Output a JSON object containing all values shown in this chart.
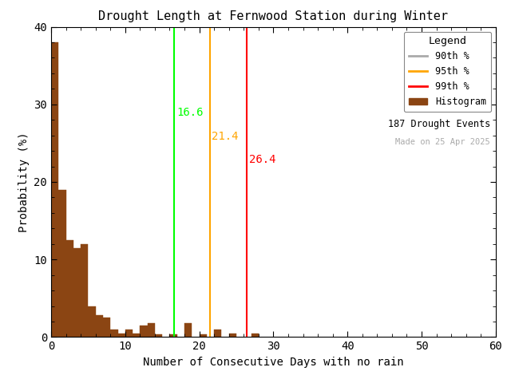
{
  "title": "Drought Length at Fernwood Station during Winter",
  "xlabel": "Number of Consecutive Days with no rain",
  "ylabel": "Probability (%)",
  "xlim": [
    0,
    60
  ],
  "ylim": [
    0,
    40
  ],
  "xticks": [
    0,
    10,
    20,
    30,
    40,
    50,
    60
  ],
  "yticks": [
    0,
    10,
    20,
    30,
    40
  ],
  "bar_color": "#8B4513",
  "bar_edgecolor": "#8B4513",
  "bin_width": 1,
  "hist_values": [
    38.0,
    19.0,
    12.5,
    11.5,
    12.0,
    4.0,
    2.8,
    2.5,
    1.0,
    0.5,
    1.0,
    0.5,
    1.5,
    1.8,
    0.3,
    0.0,
    0.3,
    0.0,
    1.8,
    0.0,
    0.3,
    0.0,
    1.0,
    0.0,
    0.5,
    0.0,
    0.0,
    0.5,
    0.0,
    0.0,
    0.0,
    0.0,
    0.0,
    0.0,
    0.0,
    0.0,
    0.0,
    0.0,
    0.0,
    0.0,
    0.0,
    0.0,
    0.0,
    0.0,
    0.0,
    0.0,
    0.0,
    0.0,
    0.0,
    0.0,
    0.0,
    0.0,
    0.0,
    0.0,
    0.0,
    0.0,
    0.0,
    0.0,
    0.0,
    0.0
  ],
  "percentile_90": 16.6,
  "percentile_95": 21.4,
  "percentile_99": 26.4,
  "color_90_line": "#00FF00",
  "color_90_legend": "#aaaaaa",
  "color_95": "#FFA500",
  "color_99": "#FF0000",
  "label_90_color": "#00FF00",
  "label_95_color": "#FFA500",
  "label_99_color": "#FF0000",
  "n_events": 187,
  "made_on": "25 Apr 2025",
  "legend_title": "Legend",
  "background_color": "#ffffff",
  "title_fontsize": 11,
  "axis_fontsize": 10,
  "tick_fontsize": 10,
  "annotation_fontsize": 10
}
